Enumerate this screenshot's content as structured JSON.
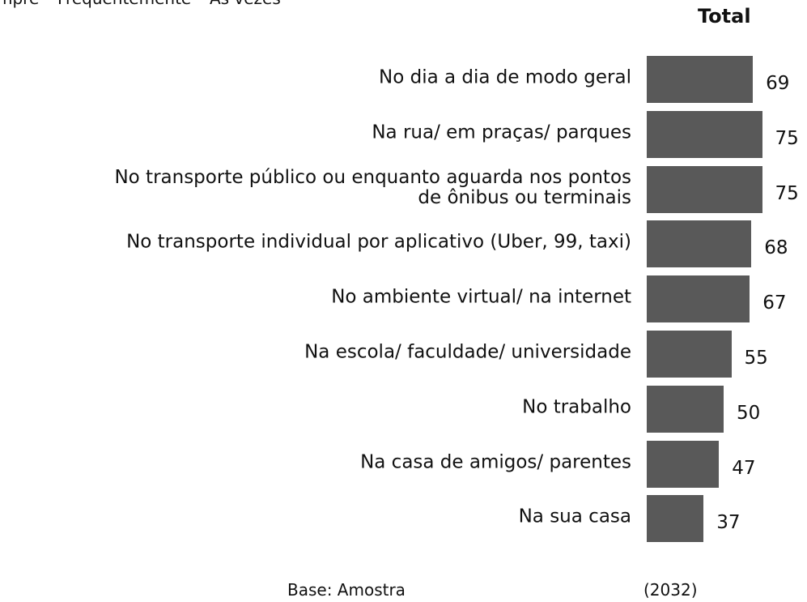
{
  "chart_data": {
    "type": "bar",
    "orientation": "horizontal",
    "subtitle": "mpre – Frequentemente – Às vezes",
    "series_label": "Total",
    "categories": [
      "No dia a dia de modo geral",
      "Na rua/ em praças/ parques",
      "No transporte público ou enquanto aguarda nos pontos\nde ônibus ou terminais",
      "No transporte individual por aplicativo (Uber, 99, taxi)",
      "No ambiente virtual/ na internet",
      "Na escola/ faculdade/ universidade",
      "No trabalho",
      "Na casa de amigos/ parentes",
      "Na sua casa"
    ],
    "values": [
      69,
      75,
      75,
      68,
      67,
      55,
      50,
      47,
      37
    ],
    "color": "#595959",
    "xlim": [
      0,
      100
    ],
    "base_label": "Base: Amostra",
    "base_value": "(2032)"
  }
}
